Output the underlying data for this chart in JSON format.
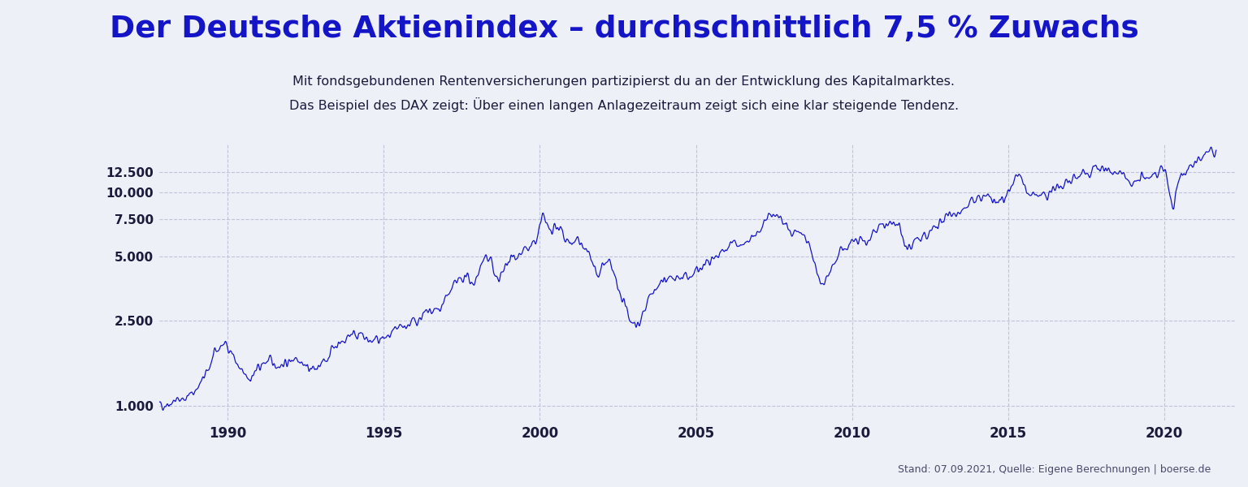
{
  "title": "Der Deutsche Aktienindex – durchschnittlich 7,5 % Zuwachs",
  "subtitle_line1": "Mit fondsgebundenen Rentenversicherungen partizipierst du an der Entwicklung des Kapitalmarktes.",
  "subtitle_line2": "Das Beispiel des DAX zeigt: Über einen langen Anlagezeitraum zeigt sich eine klar steigende Tendenz.",
  "footnote": "Stand: 07.09.2021, Quelle: Eigene Berechnungen | boerse.de",
  "title_color": "#1515c8",
  "subtitle_color": "#1a1a3a",
  "footnote_color": "#4a4a6a",
  "line_color": "#1515c8",
  "background_color": "#eef0f8",
  "grid_color": "#c0c4d8",
  "axis_label_color": "#1a1a3a",
  "yticks": [
    1000,
    2500,
    5000,
    7500,
    10000,
    12500
  ],
  "ytick_labels": [
    "1.000",
    "2.500",
    "5.000",
    "7.500",
    "10.000",
    "12.500"
  ],
  "xtick_years": [
    1990,
    1995,
    2000,
    2005,
    2010,
    2015,
    2020
  ],
  "ylim_log_min": 850,
  "ylim_log_max": 17000,
  "xmin": 1987.8,
  "xmax": 2022.3
}
